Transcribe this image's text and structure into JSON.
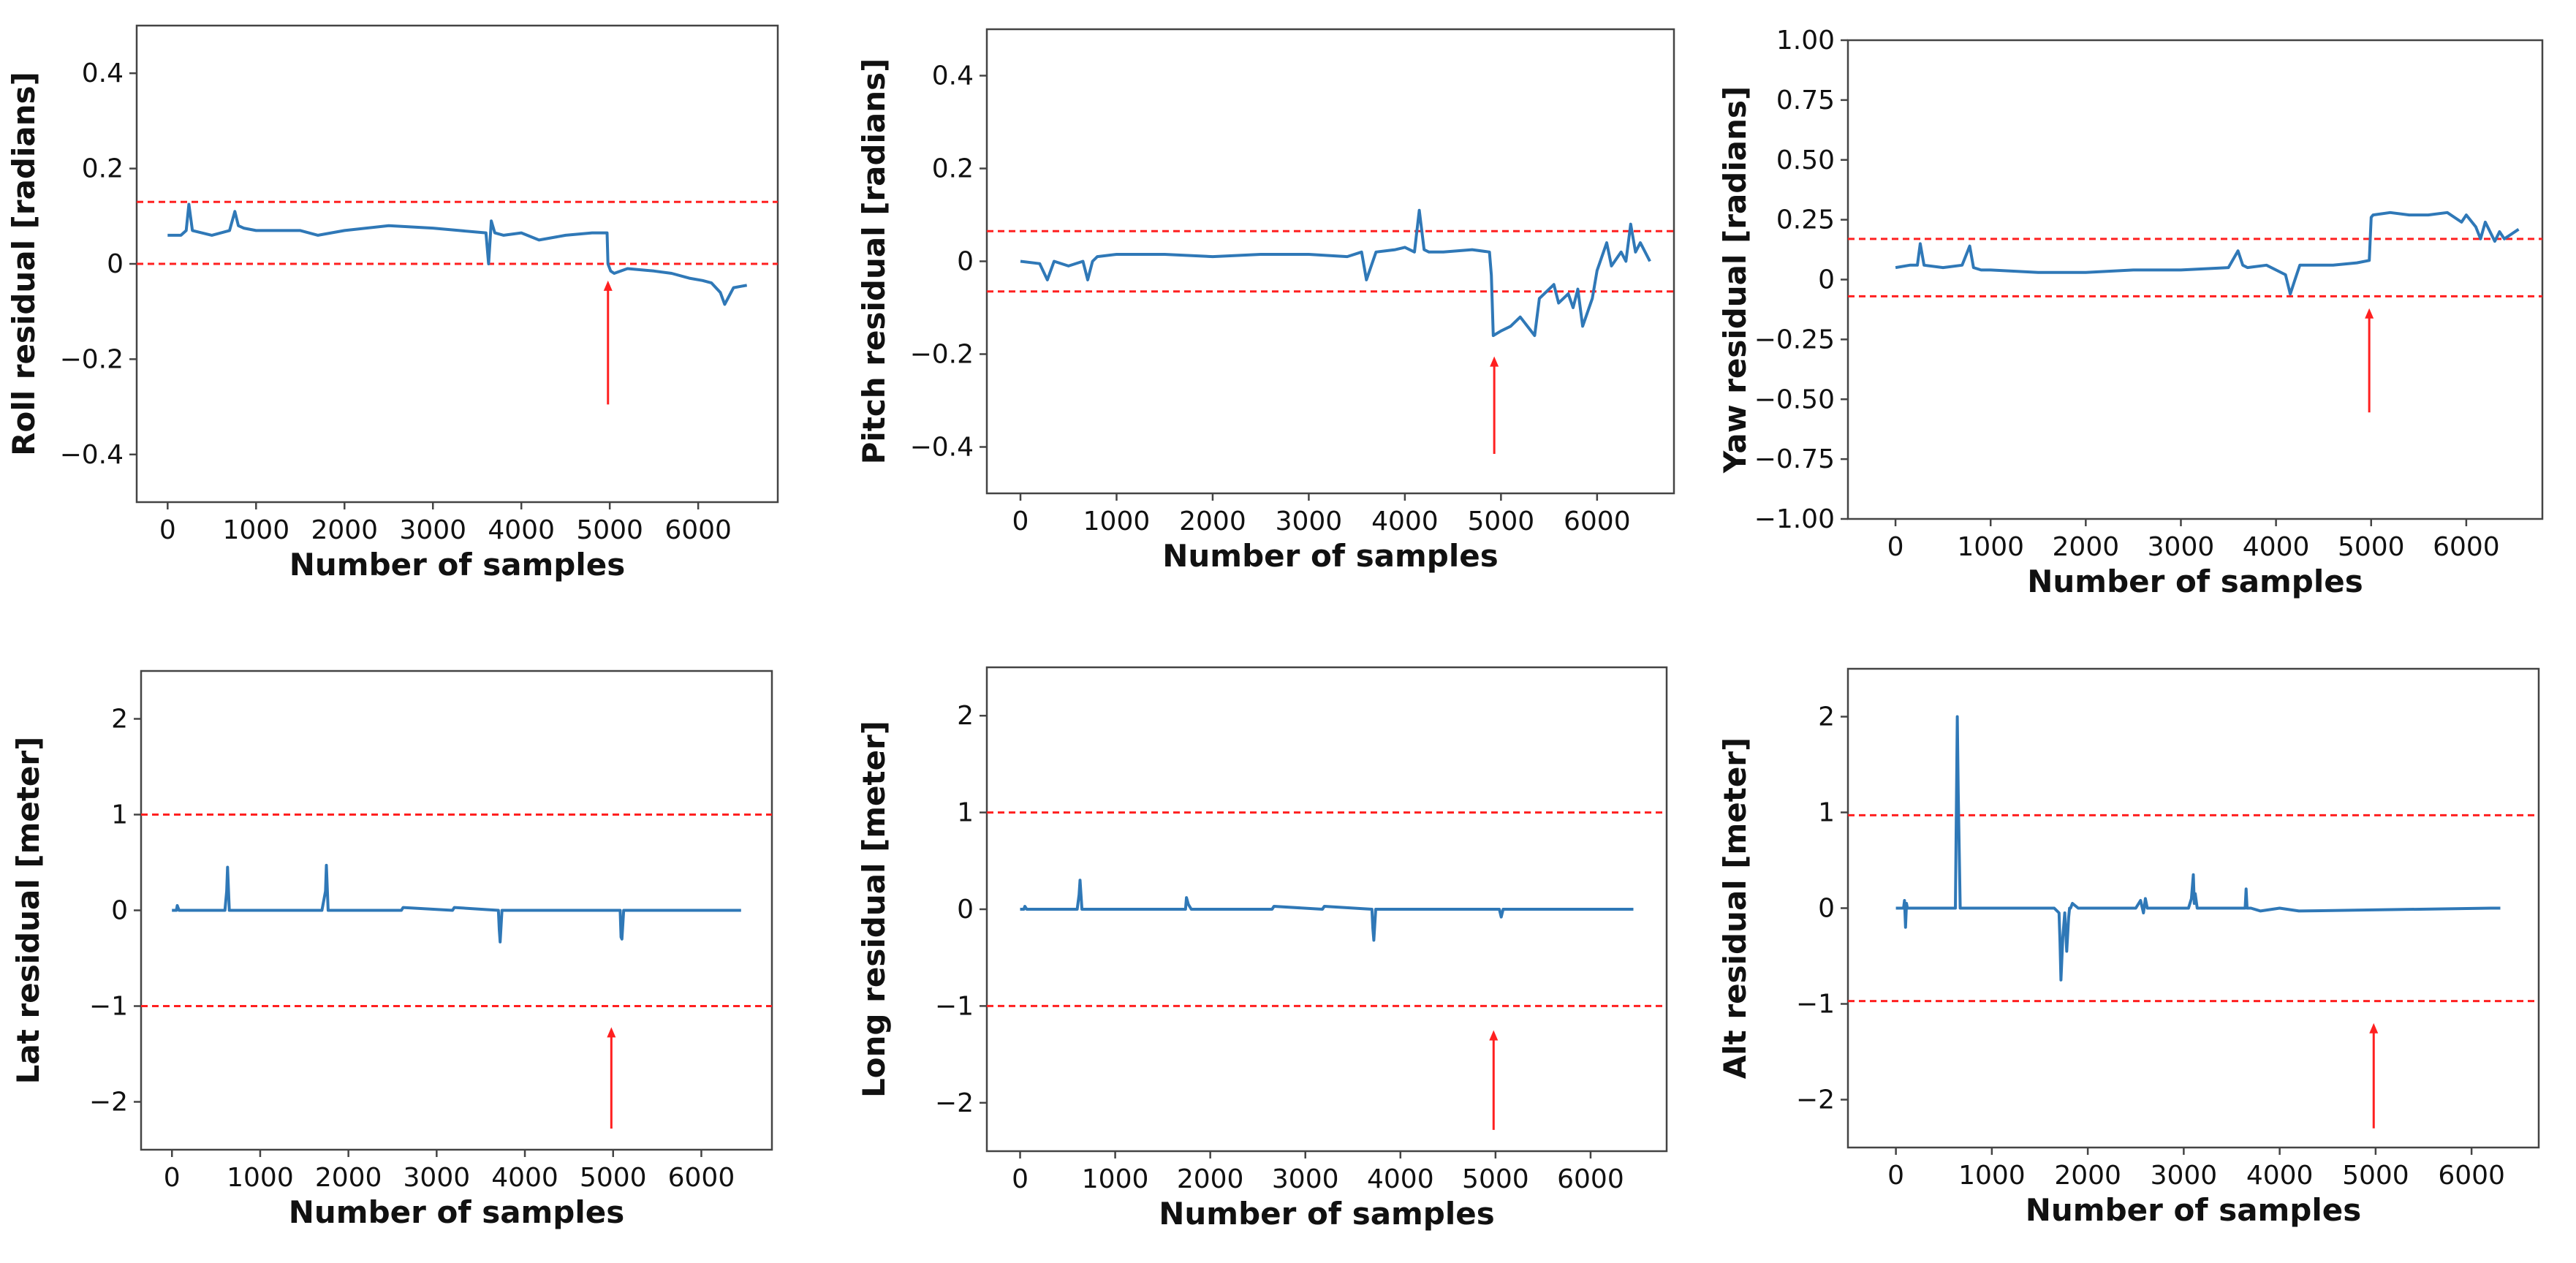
{
  "figure": {
    "colors": {
      "series": "#2f78b7",
      "threshold": "#ff2020",
      "marker": "#ff2020",
      "frame": "#444444"
    }
  },
  "chart_data": [
    {
      "type": "line",
      "name": "roll",
      "title": "",
      "xlabel": "Number of samples",
      "ylabel": "Roll residual [radians]",
      "xlim": [
        -350,
        6900
      ],
      "ylim": [
        -0.5,
        0.5
      ],
      "xticks": [
        0,
        1000,
        2000,
        3000,
        4000,
        5000,
        6000
      ],
      "yticks": [
        0.4,
        0.2,
        0,
        -0.2,
        -0.4
      ],
      "ytick_labels": [
        "0.4",
        "0.2",
        "0",
        "−0.2",
        "−0.4"
      ],
      "thresholds": [
        0.13,
        0.0
      ],
      "marker": {
        "x": 4980,
        "y_from": -0.295,
        "y_to": -0.035
      },
      "series": [
        {
          "name": "Roll residual",
          "x": [
            0,
            150,
            210,
            240,
            280,
            500,
            700,
            760,
            800,
            860,
            1000,
            1500,
            1700,
            2000,
            2500,
            3000,
            3300,
            3600,
            3630,
            3660,
            3700,
            3800,
            4000,
            4200,
            4500,
            4800,
            4970,
            4980,
            5010,
            5050,
            5200,
            5500,
            5700,
            5900,
            6050,
            6150,
            6250,
            6300,
            6400,
            6550
          ],
          "y": [
            0.06,
            0.06,
            0.07,
            0.125,
            0.07,
            0.06,
            0.07,
            0.11,
            0.08,
            0.075,
            0.07,
            0.07,
            0.06,
            0.07,
            0.08,
            0.075,
            0.07,
            0.065,
            0.0,
            0.09,
            0.065,
            0.06,
            0.065,
            0.05,
            0.06,
            0.065,
            0.065,
            0.0,
            -0.015,
            -0.02,
            -0.01,
            -0.015,
            -0.02,
            -0.03,
            -0.035,
            -0.04,
            -0.06,
            -0.085,
            -0.05,
            -0.045
          ]
        }
      ]
    },
    {
      "type": "line",
      "name": "pitch",
      "title": "",
      "xlabel": "Number of samples",
      "ylabel": "Pitch residual [radians]",
      "xlim": [
        -350,
        6800
      ],
      "ylim": [
        -0.5,
        0.5
      ],
      "xticks": [
        0,
        1000,
        2000,
        3000,
        4000,
        5000,
        6000
      ],
      "yticks": [
        0.4,
        0.2,
        0,
        -0.2,
        -0.4
      ],
      "ytick_labels": [
        "0.4",
        "0.2",
        "0",
        "−0.2",
        "−0.4"
      ],
      "thresholds": [
        0.065,
        -0.065
      ],
      "marker": {
        "x": 4930,
        "y_from": -0.415,
        "y_to": -0.205
      },
      "series": [
        {
          "name": "Pitch residual",
          "x": [
            0,
            200,
            280,
            350,
            500,
            650,
            700,
            750,
            800,
            1000,
            1500,
            2000,
            2500,
            3000,
            3400,
            3550,
            3600,
            3700,
            3900,
            4000,
            4100,
            4150,
            4200,
            4250,
            4400,
            4700,
            4880,
            4900,
            4920,
            5000,
            5100,
            5200,
            5350,
            5400,
            5550,
            5600,
            5700,
            5750,
            5800,
            5850,
            5950,
            6000,
            6100,
            6150,
            6250,
            6300,
            6350,
            6400,
            6450,
            6550
          ],
          "y": [
            0.0,
            -0.005,
            -0.04,
            0.0,
            -0.01,
            0.0,
            -0.04,
            0.0,
            0.01,
            0.015,
            0.015,
            0.01,
            0.015,
            0.015,
            0.01,
            0.02,
            -0.04,
            0.02,
            0.025,
            0.03,
            0.02,
            0.11,
            0.025,
            0.02,
            0.02,
            0.025,
            0.02,
            -0.03,
            -0.16,
            -0.15,
            -0.14,
            -0.12,
            -0.16,
            -0.08,
            -0.05,
            -0.09,
            -0.07,
            -0.1,
            -0.06,
            -0.14,
            -0.08,
            -0.02,
            0.04,
            -0.01,
            0.02,
            0.0,
            0.08,
            0.02,
            0.04,
            0.0
          ]
        }
      ]
    },
    {
      "type": "line",
      "name": "yaw",
      "title": "",
      "xlabel": "Number of samples",
      "ylabel": "Yaw residual [radians]",
      "xlim": [
        -500,
        6800
      ],
      "ylim": [
        -1.0,
        1.0
      ],
      "xticks": [
        0,
        1000,
        2000,
        3000,
        4000,
        5000,
        6000
      ],
      "yticks": [
        1.0,
        0.75,
        0.5,
        0.25,
        0,
        -0.25,
        -0.5,
        -0.75,
        -1.0
      ],
      "ytick_labels": [
        "1.00",
        "0.75",
        "0.50",
        "0.25",
        "0",
        "−0.25",
        "−0.50",
        "−0.75",
        "−1.00"
      ],
      "thresholds": [
        0.17,
        -0.07
      ],
      "marker": {
        "x": 4980,
        "y_from": -0.555,
        "y_to": -0.12
      },
      "series": [
        {
          "name": "Yaw residual",
          "x": [
            0,
            150,
            230,
            260,
            300,
            500,
            700,
            780,
            820,
            900,
            1000,
            1500,
            2000,
            2500,
            3000,
            3500,
            3600,
            3650,
            3700,
            3900,
            4100,
            4150,
            4200,
            4250,
            4400,
            4600,
            4850,
            4980,
            5000,
            5020,
            5200,
            5400,
            5600,
            5800,
            5950,
            6000,
            6100,
            6150,
            6200,
            6300,
            6350,
            6400,
            6550
          ],
          "y": [
            0.05,
            0.06,
            0.06,
            0.15,
            0.06,
            0.05,
            0.06,
            0.14,
            0.05,
            0.04,
            0.04,
            0.03,
            0.03,
            0.04,
            0.04,
            0.05,
            0.12,
            0.06,
            0.05,
            0.06,
            0.02,
            -0.06,
            0.0,
            0.06,
            0.06,
            0.06,
            0.07,
            0.08,
            0.26,
            0.27,
            0.28,
            0.27,
            0.27,
            0.28,
            0.24,
            0.27,
            0.22,
            0.17,
            0.24,
            0.16,
            0.2,
            0.17,
            0.21
          ]
        }
      ]
    },
    {
      "type": "line",
      "name": "lat",
      "title": "",
      "xlabel": "Number of samples",
      "ylabel": "Lat residual [meter]",
      "xlim": [
        -350,
        6800
      ],
      "ylim": [
        -2.5,
        2.5
      ],
      "xticks": [
        0,
        1000,
        2000,
        3000,
        4000,
        5000,
        6000
      ],
      "yticks": [
        2,
        1,
        0,
        -1,
        -2
      ],
      "ytick_labels": [
        "2",
        "1",
        "0",
        "−1",
        "−2"
      ],
      "thresholds": [
        1.0,
        -1.0
      ],
      "marker": {
        "x": 4980,
        "y_from": -2.28,
        "y_to": -1.22
      },
      "series": [
        {
          "name": "Lat residual",
          "x": [
            0,
            50,
            60,
            80,
            100,
            600,
            620,
            630,
            650,
            700,
            1700,
            1740,
            1750,
            1770,
            1800,
            2600,
            2620,
            3180,
            3200,
            3700,
            3710,
            3720,
            3740,
            5000,
            5080,
            5090,
            5100,
            5120,
            6000,
            6450
          ],
          "y": [
            0.0,
            0.0,
            0.05,
            0.0,
            0.0,
            0.0,
            0.2,
            0.45,
            0.0,
            0.0,
            0.0,
            0.2,
            0.47,
            0.0,
            0.0,
            0.0,
            0.03,
            0.0,
            0.03,
            0.0,
            -0.2,
            -0.33,
            0.0,
            0.0,
            0.0,
            -0.28,
            -0.3,
            0.0,
            0.0,
            0.0
          ]
        }
      ]
    },
    {
      "type": "line",
      "name": "long",
      "title": "",
      "xlabel": "Number of samples",
      "ylabel": "Long residual [meter]",
      "xlim": [
        -350,
        6800
      ],
      "ylim": [
        -2.5,
        2.5
      ],
      "xticks": [
        0,
        1000,
        2000,
        3000,
        4000,
        5000,
        6000
      ],
      "yticks": [
        2,
        1,
        0,
        -1,
        -2
      ],
      "ytick_labels": [
        "2",
        "1",
        "0",
        "−1",
        "−2"
      ],
      "thresholds": [
        1.0,
        -1.0
      ],
      "marker": {
        "x": 4980,
        "y_from": -2.28,
        "y_to": -1.25
      },
      "series": [
        {
          "name": "Long residual",
          "x": [
            0,
            40,
            50,
            70,
            100,
            600,
            620,
            630,
            650,
            700,
            1740,
            1750,
            1770,
            1800,
            2650,
            2670,
            3180,
            3200,
            3700,
            3710,
            3720,
            3740,
            5040,
            5060,
            5080,
            6450
          ],
          "y": [
            0.0,
            0.0,
            0.03,
            0.0,
            0.0,
            0.0,
            0.15,
            0.3,
            0.0,
            0.0,
            0.0,
            0.12,
            0.05,
            0.0,
            0.0,
            0.03,
            0.0,
            0.03,
            0.0,
            -0.2,
            -0.32,
            0.0,
            0.0,
            -0.08,
            0.0,
            0.0
          ]
        }
      ]
    },
    {
      "type": "line",
      "name": "alt",
      "title": "",
      "xlabel": "Number of samples",
      "ylabel": "Alt residual [meter]",
      "xlim": [
        -500,
        6700
      ],
      "ylim": [
        -2.5,
        2.5
      ],
      "xticks": [
        0,
        1000,
        2000,
        3000,
        4000,
        5000,
        6000
      ],
      "yticks": [
        2,
        1,
        0,
        -1,
        -2
      ],
      "ytick_labels": [
        "2",
        "1",
        "0",
        "−1",
        "−2"
      ],
      "thresholds": [
        0.97,
        -0.97
      ],
      "marker": {
        "x": 4980,
        "y_from": -2.3,
        "y_to": -1.2
      },
      "series": [
        {
          "name": "Alt residual",
          "x": [
            0,
            80,
            90,
            100,
            110,
            120,
            200,
            600,
            620,
            640,
            650,
            670,
            700,
            1650,
            1700,
            1710,
            1720,
            1740,
            1760,
            1780,
            1800,
            1810,
            1820,
            1840,
            1900,
            2500,
            2550,
            2580,
            2600,
            2620,
            2700,
            3050,
            3080,
            3100,
            3110,
            3120,
            3140,
            3200,
            3600,
            3640,
            3650,
            3660,
            3700,
            3800,
            4000,
            4200,
            6200,
            6300
          ],
          "y": [
            0.0,
            0.0,
            0.08,
            -0.2,
            0.05,
            0.0,
            0.0,
            0.0,
            0.0,
            2.0,
            1.2,
            0.0,
            0.0,
            0.0,
            -0.05,
            -0.35,
            -0.75,
            -0.3,
            -0.05,
            -0.45,
            -0.1,
            0.0,
            0.0,
            0.05,
            0.0,
            0.0,
            0.08,
            -0.05,
            0.1,
            0.0,
            0.0,
            0.0,
            0.1,
            0.35,
            0.05,
            0.15,
            0.0,
            0.0,
            0.0,
            0.0,
            0.2,
            0.0,
            0.0,
            -0.03,
            0.0,
            -0.03,
            0.0,
            0.0
          ]
        }
      ]
    }
  ]
}
